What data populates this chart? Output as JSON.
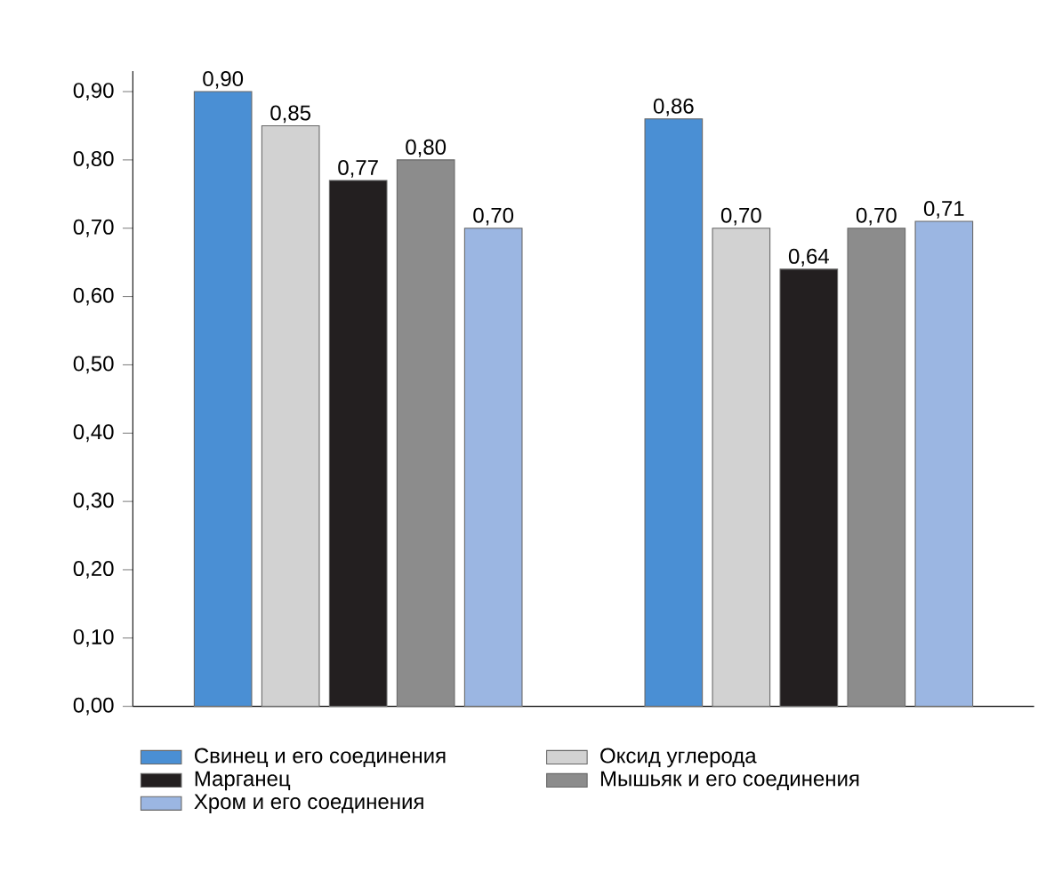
{
  "chart_data": {
    "type": "bar",
    "categories": [
      null,
      null
    ],
    "series": [
      {
        "name": "Свинец и его соединения",
        "color": "#4a8fd4",
        "values": [
          0.9,
          0.86
        ],
        "value_labels": [
          "0,90",
          "0,86"
        ]
      },
      {
        "name": "Оксид углерода",
        "color": "#d2d2d2",
        "values": [
          0.85,
          0.7
        ],
        "value_labels": [
          "0,85",
          "0,70"
        ]
      },
      {
        "name": "Марганец",
        "color": "#231f20",
        "values": [
          0.77,
          0.64
        ],
        "value_labels": [
          "0,77",
          "0,64"
        ]
      },
      {
        "name": "Мышьяк и его соединения",
        "color": "#8c8c8c",
        "values": [
          0.8,
          0.7
        ],
        "value_labels": [
          "0,80",
          "0,70"
        ]
      },
      {
        "name": "Хром и его соединения",
        "color": "#9bb6e2",
        "values": [
          0.7,
          0.71
        ],
        "value_labels": [
          "0,70",
          "0,71"
        ]
      }
    ],
    "ylim": [
      0,
      0.93
    ],
    "yticks": [
      {
        "value": 0,
        "label": "0,00"
      },
      {
        "value": 0.1,
        "label": "0,10"
      },
      {
        "value": 0.2,
        "label": "0,20"
      },
      {
        "value": 0.3,
        "label": "0,30"
      },
      {
        "value": 0.4,
        "label": "0,40"
      },
      {
        "value": 0.5,
        "label": "0,50"
      },
      {
        "value": 0.6,
        "label": "0,60"
      },
      {
        "value": 0.7,
        "label": "0,70"
      },
      {
        "value": 0.8,
        "label": "0,80"
      },
      {
        "value": 0.9,
        "label": "0,90"
      }
    ],
    "legend": "bottom"
  }
}
